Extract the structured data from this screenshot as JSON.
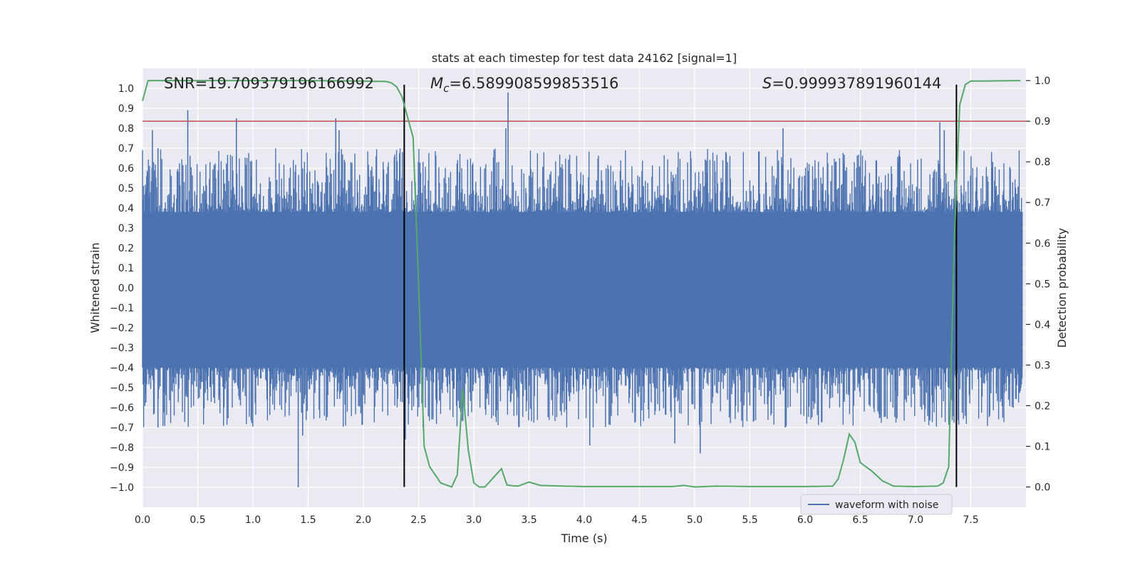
{
  "chart_data": {
    "type": "line",
    "title": "stats at each timestep for test data 24162 [signal=1]",
    "xlabel": "Time (s)",
    "ylabel_left": "Whitened strain",
    "ylabel_right": "Detection probability",
    "xlim": [
      0.0,
      8.0
    ],
    "ylim_left": [
      -1.1,
      1.1
    ],
    "ylim_right": [
      -0.05,
      1.03
    ],
    "xticks": [
      "0.0",
      "0.5",
      "1.0",
      "1.5",
      "2.0",
      "2.5",
      "3.0",
      "3.5",
      "4.0",
      "4.5",
      "5.0",
      "5.5",
      "6.0",
      "6.5",
      "7.0",
      "7.5"
    ],
    "yticks_left": [
      "1.0",
      "0.9",
      "0.8",
      "0.7",
      "0.6",
      "0.5",
      "0.4",
      "0.3",
      "0.2",
      "0.1",
      "0.0",
      "−0.1",
      "−0.2",
      "−0.3",
      "−0.4",
      "−0.5",
      "−0.6",
      "−0.7",
      "−0.8",
      "−0.9",
      "−1.0"
    ],
    "yticks_right": [
      "1.0",
      "0.9",
      "0.8",
      "0.7",
      "0.6",
      "0.5",
      "0.4",
      "0.3",
      "0.2",
      "0.1",
      "0.0"
    ],
    "annotations": {
      "snr_text": "SNR=19.709379196166992",
      "mc_prefix": "M",
      "mc_sub": "c",
      "mc_value": "=6.589908599853516",
      "s_prefix": "S",
      "s_value": "=0.999937891960144"
    },
    "threshold_line": {
      "y_right": 0.9,
      "color": "#c44e52"
    },
    "vertical_lines": [
      2.37,
      7.37
    ],
    "waveform": {
      "name": "waveform with noise",
      "color": "#4c72b0",
      "envelope_max": 0.38,
      "envelope_min": -0.4,
      "spikes": [
        {
          "x": 0.41,
          "y": 0.89
        },
        {
          "x": 0.09,
          "y": 0.79
        },
        {
          "x": 0.14,
          "y": 0.7
        },
        {
          "x": 0.85,
          "y": 0.85
        },
        {
          "x": 1.75,
          "y": 0.85
        },
        {
          "x": 1.78,
          "y": 0.79
        },
        {
          "x": 2.37,
          "y": 0.94
        },
        {
          "x": 3.31,
          "y": 0.98
        },
        {
          "x": 3.29,
          "y": 0.8
        },
        {
          "x": 5.8,
          "y": 0.8
        },
        {
          "x": 7.22,
          "y": 0.83
        },
        {
          "x": 7.26,
          "y": 0.79
        },
        {
          "x": 1.41,
          "y": -1.0
        },
        {
          "x": 1.45,
          "y": -0.74
        },
        {
          "x": 0.14,
          "y": -0.7
        },
        {
          "x": 4.05,
          "y": -0.79
        },
        {
          "x": 4.82,
          "y": -0.78
        },
        {
          "x": 5.05,
          "y": -0.83
        },
        {
          "x": 5.82,
          "y": -0.7
        },
        {
          "x": 2.38,
          "y": -0.76
        }
      ]
    },
    "detection_probability": {
      "color": "#55a868",
      "x": [
        0.0,
        0.05,
        0.1,
        0.3,
        0.6,
        1.0,
        1.5,
        2.0,
        2.1,
        2.2,
        2.25,
        2.3,
        2.35,
        2.4,
        2.45,
        2.5,
        2.55,
        2.6,
        2.65,
        2.7,
        2.8,
        2.85,
        2.9,
        2.95,
        3.0,
        3.05,
        3.1,
        3.2,
        3.25,
        3.3,
        3.35,
        3.4,
        3.5,
        3.6,
        3.8,
        4.0,
        4.5,
        4.8,
        4.9,
        5.0,
        5.2,
        5.5,
        6.0,
        6.25,
        6.3,
        6.35,
        6.4,
        6.45,
        6.5,
        6.6,
        6.7,
        6.8,
        7.0,
        7.2,
        7.25,
        7.3,
        7.35,
        7.4,
        7.45,
        7.5,
        7.6,
        7.95
      ],
      "y": [
        0.95,
        1.0,
        1.0,
        1.0,
        1.0,
        1.0,
        1.0,
        0.999,
        0.998,
        0.998,
        0.995,
        0.985,
        0.96,
        0.91,
        0.86,
        0.5,
        0.1,
        0.05,
        0.03,
        0.01,
        0.0,
        0.03,
        0.24,
        0.09,
        0.01,
        0.0,
        0.0,
        0.03,
        0.045,
        0.005,
        0.003,
        0.002,
        0.012,
        0.004,
        0.002,
        0.001,
        0.001,
        0.001,
        0.004,
        0.0,
        0.002,
        0.001,
        0.001,
        0.002,
        0.02,
        0.07,
        0.13,
        0.11,
        0.06,
        0.04,
        0.015,
        0.002,
        0.001,
        0.002,
        0.01,
        0.05,
        0.6,
        0.94,
        0.99,
        0.999,
        0.999,
        1.0
      ]
    },
    "legend": {
      "position": "lower-right",
      "entries": [
        "waveform with noise"
      ]
    }
  }
}
